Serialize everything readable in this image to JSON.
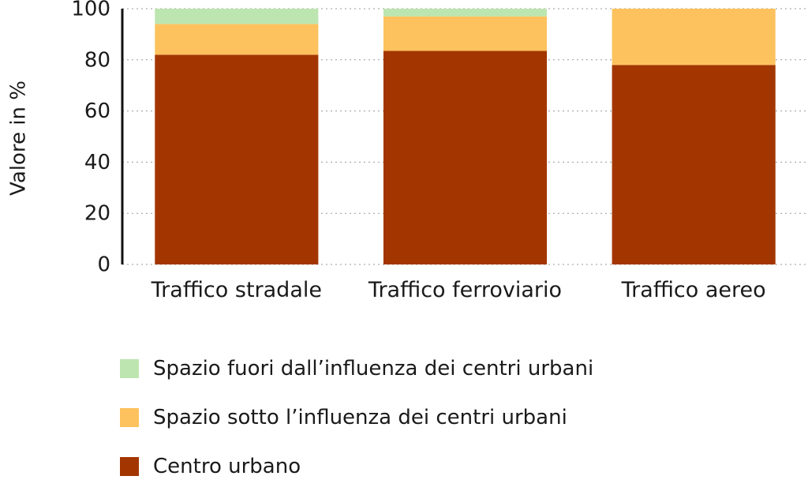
{
  "chart_data": {
    "type": "bar",
    "stacked": true,
    "categories": [
      "Traffico stradale",
      "Traffico ferroviario",
      "Traffico aereo"
    ],
    "series": [
      {
        "name": "Centro urbano",
        "color": "#a33600",
        "values": [
          82,
          83.5,
          78
        ]
      },
      {
        "name": "Spazio sotto l’influenza dei centri urbani",
        "color": "#fdc25e",
        "values": [
          12,
          13.5,
          22
        ]
      },
      {
        "name": "Spazio fuori dall’influenza dei centri urbani",
        "color": "#bde5b0",
        "values": [
          6,
          3,
          0
        ]
      }
    ],
    "legend_order": [
      2,
      1,
      0
    ],
    "ylabel": "Valore in %",
    "xlabel": "",
    "ylim": [
      0,
      100
    ],
    "yticks": [
      0,
      20,
      40,
      60,
      80,
      100
    ],
    "grid": "horizontal dotted",
    "legend_position": "bottom"
  }
}
